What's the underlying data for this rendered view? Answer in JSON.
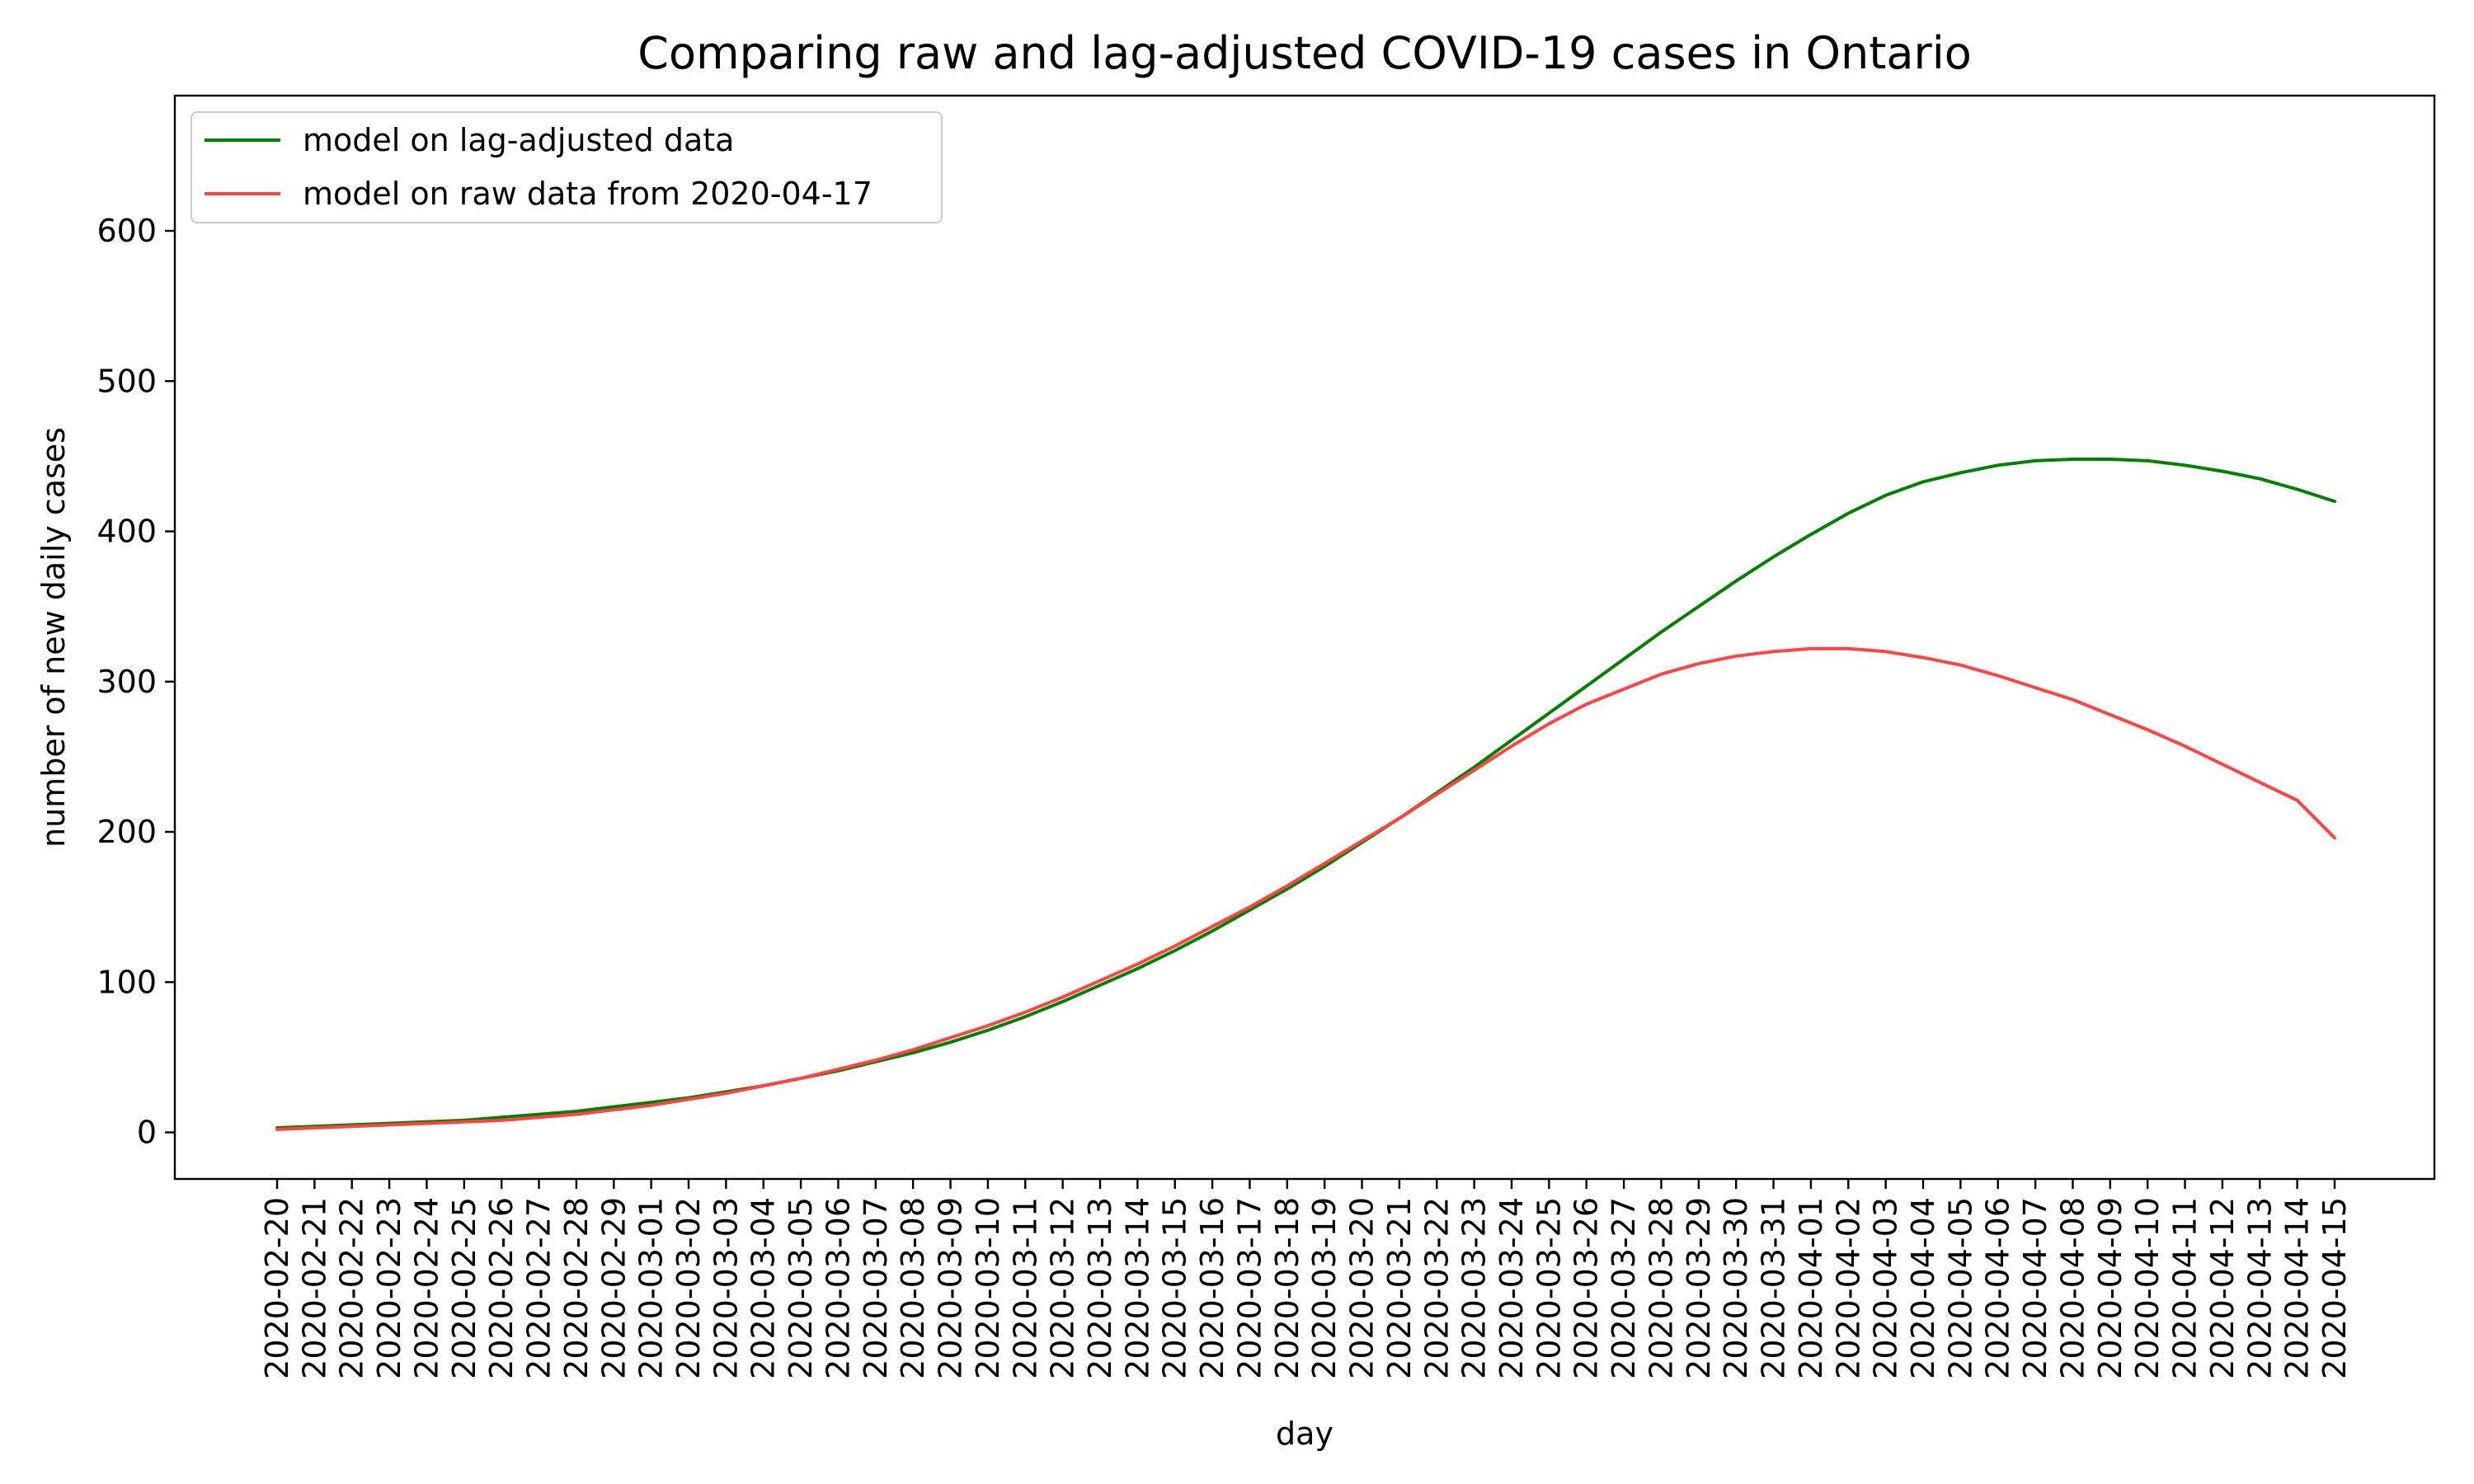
{
  "chart_data": {
    "type": "line",
    "title": "Comparing raw and lag-adjusted COVID-19 cases in Ontario",
    "xlabel": "day",
    "ylabel": "number of new daily cases",
    "ylim": [
      -31,
      690
    ],
    "yticks": [
      0,
      100,
      200,
      300,
      400,
      500,
      600
    ],
    "grid": false,
    "legend_position": "top-left",
    "x": [
      "2020-02-20",
      "2020-02-21",
      "2020-02-22",
      "2020-02-23",
      "2020-02-24",
      "2020-02-25",
      "2020-02-26",
      "2020-02-27",
      "2020-02-28",
      "2020-02-29",
      "2020-03-01",
      "2020-03-02",
      "2020-03-03",
      "2020-03-04",
      "2020-03-05",
      "2020-03-06",
      "2020-03-07",
      "2020-03-08",
      "2020-03-09",
      "2020-03-10",
      "2020-03-11",
      "2020-03-12",
      "2020-03-13",
      "2020-03-14",
      "2020-03-15",
      "2020-03-16",
      "2020-03-17",
      "2020-03-18",
      "2020-03-19",
      "2020-03-20",
      "2020-03-21",
      "2020-03-22",
      "2020-03-23",
      "2020-03-24",
      "2020-03-25",
      "2020-03-26",
      "2020-03-27",
      "2020-03-28",
      "2020-03-29",
      "2020-03-30",
      "2020-03-31",
      "2020-04-01",
      "2020-04-02",
      "2020-04-03",
      "2020-04-04",
      "2020-04-05",
      "2020-04-06",
      "2020-04-07",
      "2020-04-08",
      "2020-04-09",
      "2020-04-10",
      "2020-04-11",
      "2020-04-12",
      "2020-04-13",
      "2020-04-14",
      "2020-04-15"
    ],
    "series": [
      {
        "name": "model on lag-adjusted data",
        "color": "#008000",
        "values": [
          3,
          4,
          5,
          6,
          7,
          8,
          10,
          12,
          14,
          17,
          20,
          23,
          27,
          31,
          36,
          41,
          47,
          53,
          60,
          68,
          77,
          87,
          98,
          109,
          121,
          134,
          148,
          162,
          177,
          193,
          209,
          226,
          243,
          261,
          279,
          297,
          315,
          333,
          350,
          367,
          383,
          398,
          412,
          424,
          433,
          439,
          444,
          447,
          448,
          448,
          447,
          444,
          440,
          435,
          428,
          420
        ]
      },
      {
        "name": "model on raw data from 2020-04-17",
        "color": "#ff4444",
        "values": [
          2,
          3,
          4,
          5,
          6,
          7,
          8,
          10,
          12,
          15,
          18,
          22,
          26,
          31,
          36,
          42,
          48,
          55,
          63,
          71,
          80,
          90,
          101,
          112,
          124,
          137,
          150,
          164,
          179,
          194,
          209,
          225,
          241,
          257,
          272,
          285,
          295,
          305,
          312,
          317,
          320,
          322,
          322,
          320,
          316,
          311,
          304,
          296,
          288,
          278,
          268,
          257,
          245,
          233,
          221,
          196
        ]
      }
    ]
  }
}
